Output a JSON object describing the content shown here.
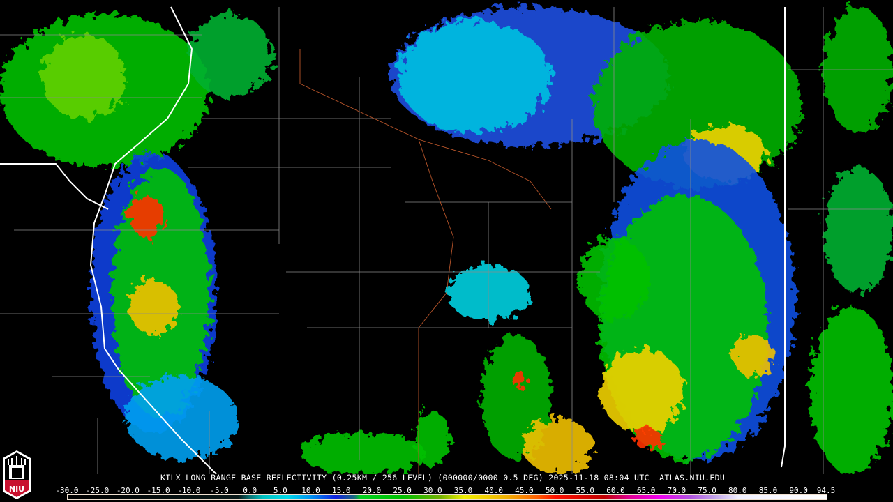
{
  "product": {
    "caption": "KILX LONG RANGE BASE REFLECTIVITY (0.25KM / 256 LEVEL) (000000/0000 0.5 DEG) 2025-11-18 08:04 UTC  ATLAS.NIU.EDU"
  },
  "logo": {
    "text": "NIU",
    "colors": {
      "red": "#c8102e",
      "white": "#ffffff"
    }
  },
  "legend": {
    "ticks": [
      "-30.0",
      "-25.0",
      "-20.0",
      "-15.0",
      "-10.0",
      "-5.0",
      "0.0",
      "5.0",
      "10.0",
      "15.0",
      "20.0",
      "25.0",
      "30.0",
      "35.0",
      "40.0",
      "45.0",
      "50.0",
      "55.0",
      "60.0",
      "65.0",
      "70.0",
      "75.0",
      "80.0",
      "85.0",
      "90.0",
      "94.5"
    ],
    "range": [
      -30,
      94.5
    ],
    "colors": [
      {
        "v": -30,
        "c": "#000000"
      },
      {
        "v": -2,
        "c": "#0a1a1a"
      },
      {
        "v": 0,
        "c": "#0a7a7a"
      },
      {
        "v": 2,
        "c": "#00c0c0"
      },
      {
        "v": 6,
        "c": "#00d8e8"
      },
      {
        "v": 10,
        "c": "#0090f0"
      },
      {
        "v": 14,
        "c": "#1020e0"
      },
      {
        "v": 17,
        "c": "#1a6a80"
      },
      {
        "v": 18,
        "c": "#00d020"
      },
      {
        "v": 25,
        "c": "#00c000"
      },
      {
        "v": 31,
        "c": "#70b000"
      },
      {
        "v": 35,
        "c": "#f0f000"
      },
      {
        "v": 42,
        "c": "#f0b000"
      },
      {
        "v": 47,
        "c": "#ff6000"
      },
      {
        "v": 50,
        "c": "#ff1000"
      },
      {
        "v": 58,
        "c": "#c00000"
      },
      {
        "v": 62,
        "c": "#e00090"
      },
      {
        "v": 67,
        "c": "#f000f0"
      },
      {
        "v": 72,
        "c": "#b050e0"
      },
      {
        "v": 76,
        "c": "#c0a0e8"
      },
      {
        "v": 80,
        "c": "#f0f0ff"
      },
      {
        "v": 94.5,
        "c": "#ffffff"
      }
    ]
  }
}
